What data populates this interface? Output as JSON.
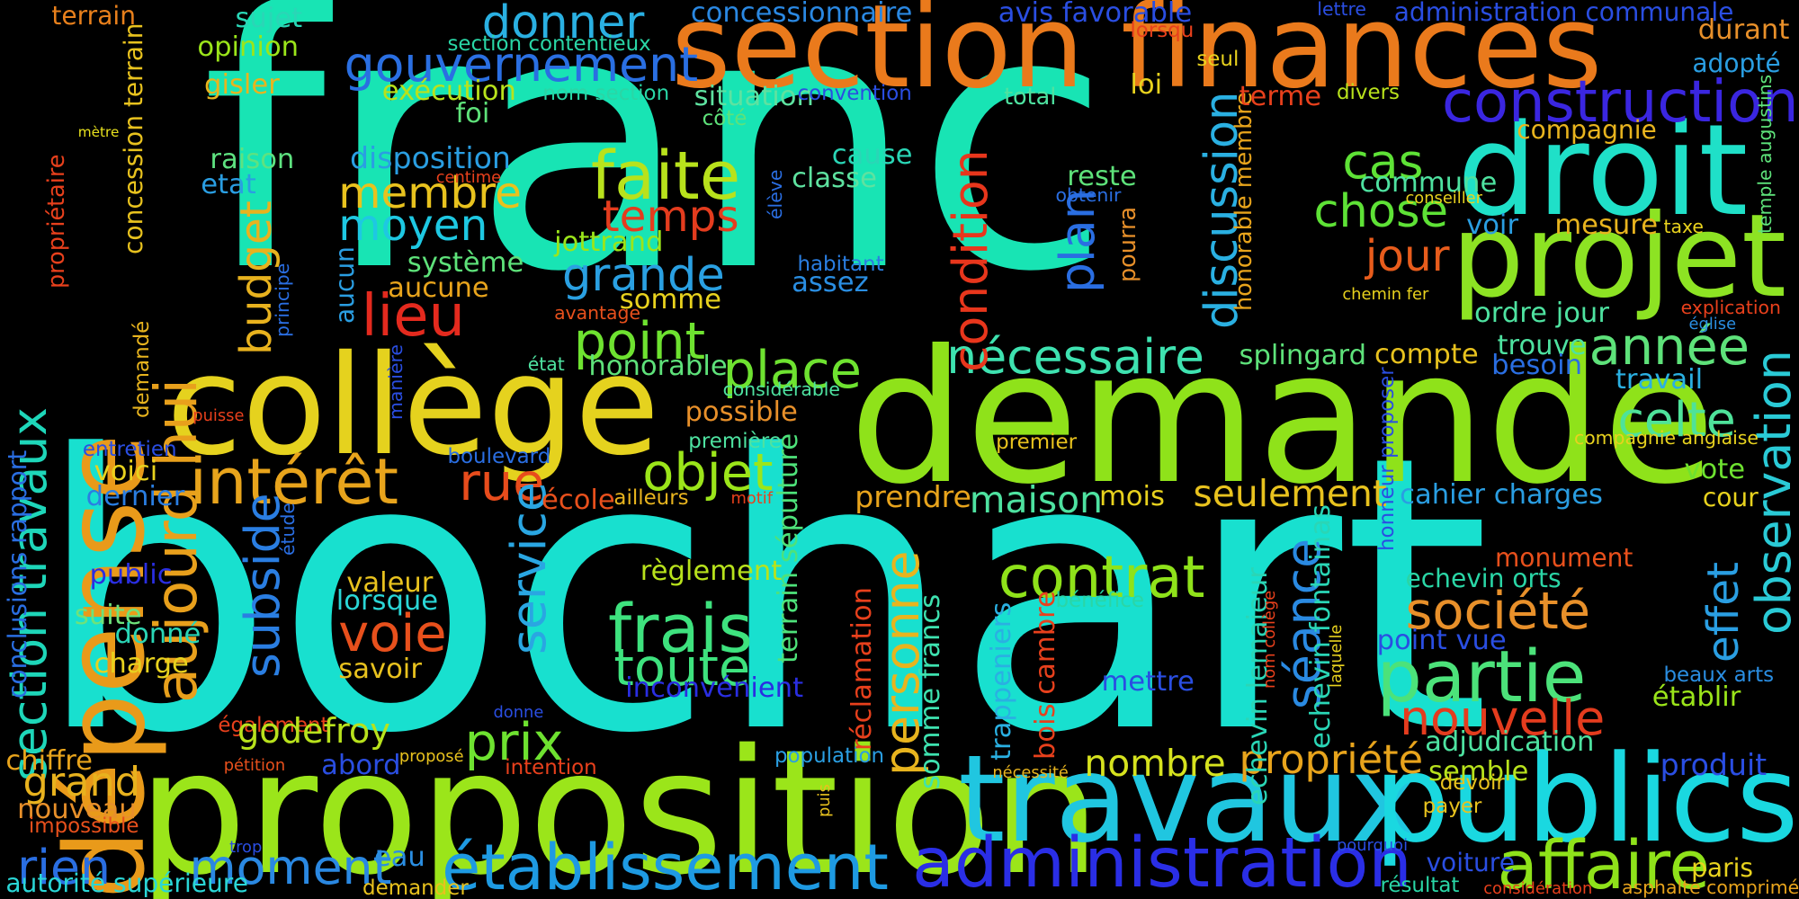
{
  "words": [
    {
      "text": "franc",
      "color": "#18e4b4"
    },
    {
      "text": "bochart",
      "color": "#18e0cf"
    },
    {
      "text": "demande",
      "color": "#8fe21a"
    },
    {
      "text": "proposition",
      "color": "#9be51a"
    },
    {
      "text": "collège",
      "color": "#e5d21e"
    },
    {
      "text": "section finances",
      "color": "#ea7a1c"
    },
    {
      "text": "droit",
      "color": "#1fe0c8"
    },
    {
      "text": "projet",
      "color": "#8de323"
    },
    {
      "text": "dépense",
      "color": "#e99a1a"
    },
    {
      "text": "travaux",
      "color": "#20c6e0"
    },
    {
      "text": "publics",
      "color": "#1ad8e0"
    },
    {
      "text": "administration",
      "color": "#2a2ee6"
    },
    {
      "text": "établissement",
      "color": "#1e9ae2"
    },
    {
      "text": "affaire",
      "color": "#8fe21a"
    },
    {
      "text": "aujourd hui",
      "color": "#e8a01c"
    },
    {
      "text": "section travaux",
      "color": "#1ed6b9"
    },
    {
      "text": "construction",
      "color": "#3a26e0"
    },
    {
      "text": "gouvernement",
      "color": "#2a6fe2"
    },
    {
      "text": "intérêt",
      "color": "#e8a41c"
    },
    {
      "text": "faite",
      "color": "#b8e21c"
    },
    {
      "text": "lieu",
      "color": "#e42a1e"
    },
    {
      "text": "partie",
      "color": "#4ce27a"
    },
    {
      "text": "frais",
      "color": "#3ee27e"
    },
    {
      "text": "toute",
      "color": "#3ee27e"
    },
    {
      "text": "contrat",
      "color": "#8fe21a"
    },
    {
      "text": "moment",
      "color": "#2a88e2"
    },
    {
      "text": "rien",
      "color": "#2a6ee2"
    },
    {
      "text": "voie",
      "color": "#e8501c"
    },
    {
      "text": "prix",
      "color": "#6ee230"
    },
    {
      "text": "place",
      "color": "#6ee230"
    },
    {
      "text": "point",
      "color": "#6ee230"
    },
    {
      "text": "grande",
      "color": "#2aa0e2"
    },
    {
      "text": "membre",
      "color": "#e8c21e"
    },
    {
      "text": "moyen",
      "color": "#1ec8e2"
    },
    {
      "text": "temps",
      "color": "#e43c1e"
    },
    {
      "text": "objet",
      "color": "#9be51a"
    },
    {
      "text": "rue",
      "color": "#e84c1c"
    },
    {
      "text": "année",
      "color": "#5ee27a"
    },
    {
      "text": "celte",
      "color": "#4ee29a"
    },
    {
      "text": "nécessaire",
      "color": "#3ee2b0"
    },
    {
      "text": "chose",
      "color": "#5ee236"
    },
    {
      "text": "cas",
      "color": "#5ee236"
    },
    {
      "text": "jour",
      "color": "#e85c1c"
    },
    {
      "text": "société",
      "color": "#e8902a"
    },
    {
      "text": "nouvelle",
      "color": "#e43c1e"
    },
    {
      "text": "propriété",
      "color": "#e8a41c"
    },
    {
      "text": "nombre",
      "color": "#d6e21e"
    },
    {
      "text": "seulement",
      "color": "#e8c21e"
    },
    {
      "text": "maison",
      "color": "#4ee2a0"
    },
    {
      "text": "personne",
      "color": "#e8b41e"
    },
    {
      "text": "service",
      "color": "#2aa6e2"
    },
    {
      "text": "subside",
      "color": "#2a7ee2"
    },
    {
      "text": "budget",
      "color": "#e8b21e"
    },
    {
      "text": "condition",
      "color": "#e8361c"
    },
    {
      "text": "plan",
      "color": "#2a6ee2"
    },
    {
      "text": "discussion",
      "color": "#2ab0e2"
    },
    {
      "text": "séance",
      "color": "#2a8ae2"
    },
    {
      "text": "observation",
      "color": "#2acad6"
    },
    {
      "text": "effet",
      "color": "#2a9ee2"
    },
    {
      "text": "donner",
      "color": "#2ab0e2"
    },
    {
      "text": "dernier",
      "color": "#2a7ee2"
    },
    {
      "text": "voici",
      "color": "#e8d21e"
    },
    {
      "text": "public",
      "color": "#2a2ee2"
    },
    {
      "text": "suite",
      "color": "#6ee27a"
    },
    {
      "text": "donné",
      "color": "#2ad6b6"
    },
    {
      "text": "charge",
      "color": "#e8d21e"
    },
    {
      "text": "grand",
      "color": "#e8b21e"
    },
    {
      "text": "chiffre",
      "color": "#e8a41c"
    },
    {
      "text": "nouveau",
      "color": "#e8902a"
    },
    {
      "text": "impossible",
      "color": "#e8501c"
    },
    {
      "text": "autorité supérieure",
      "color": "#2ad6d6"
    },
    {
      "text": "conclusions rapport",
      "color": "#2a6ee2"
    },
    {
      "text": "entretien",
      "color": "#2a4ee2"
    },
    {
      "text": "demandé",
      "color": "#e8b41e"
    },
    {
      "text": "propriétaire",
      "color": "#e8401c"
    },
    {
      "text": "concession terrain",
      "color": "#e8c21e"
    },
    {
      "text": "terrain",
      "color": "#e8801c"
    },
    {
      "text": "mètre",
      "color": "#e8e21e"
    },
    {
      "text": "sujet",
      "color": "#2ad6b6"
    },
    {
      "text": "opinion",
      "color": "#9be51a"
    },
    {
      "text": "gisler",
      "color": "#e8b41e"
    },
    {
      "text": "raison",
      "color": "#5ee280"
    },
    {
      "text": "etat",
      "color": "#2a9ee2"
    },
    {
      "text": "principe",
      "color": "#2a6ee2"
    },
    {
      "text": "puisse",
      "color": "#e8401c"
    },
    {
      "text": "aucun",
      "color": "#2a9ee2"
    },
    {
      "text": "aucune",
      "color": "#e8a41c"
    },
    {
      "text": "système",
      "color": "#5ee27a"
    },
    {
      "text": "disposition",
      "color": "#2a9ee2"
    },
    {
      "text": "exécution",
      "color": "#b8e21c"
    },
    {
      "text": "foi",
      "color": "#5ee27a"
    },
    {
      "text": "centime",
      "color": "#e8401c"
    },
    {
      "text": "section contentieux",
      "color": "#2ad6a6"
    },
    {
      "text": "nom section",
      "color": "#2ad6a6"
    },
    {
      "text": "concessionnaire",
      "color": "#2a88e2"
    },
    {
      "text": "situation",
      "color": "#5ee2a0"
    },
    {
      "text": "convention",
      "color": "#2a4ee2"
    },
    {
      "text": "côté",
      "color": "#5ee27a"
    },
    {
      "text": "cause",
      "color": "#2ad6b6"
    },
    {
      "text": "classe",
      "color": "#5ee2a0"
    },
    {
      "text": "élève",
      "color": "#2a6ee2"
    },
    {
      "text": "jottrand",
      "color": "#9be51a"
    },
    {
      "text": "habitant",
      "color": "#2a7ee2"
    },
    {
      "text": "assez",
      "color": "#2a8ee2"
    },
    {
      "text": "somme",
      "color": "#e8d21e"
    },
    {
      "text": "avantage",
      "color": "#e8501c"
    },
    {
      "text": "honorable",
      "color": "#5ee27a"
    },
    {
      "text": "état",
      "color": "#4ee2a0"
    },
    {
      "text": "manière",
      "color": "#2a4ee2"
    },
    {
      "text": "possible",
      "color": "#e8902a"
    },
    {
      "text": "considérable",
      "color": "#4ee2a0"
    },
    {
      "text": "première",
      "color": "#4ee2a0"
    },
    {
      "text": "boulevard",
      "color": "#2a6ee2"
    },
    {
      "text": "étude",
      "color": "#2a6ee2"
    },
    {
      "text": "école",
      "color": "#e8501c"
    },
    {
      "text": "ailleurs",
      "color": "#e8b41e"
    },
    {
      "text": "motif",
      "color": "#e8401c"
    },
    {
      "text": "règlement",
      "color": "#b8e21c"
    },
    {
      "text": "valeur",
      "color": "#e8c21e"
    },
    {
      "text": "lorsque",
      "color": "#2ad6d6"
    },
    {
      "text": "savoir",
      "color": "#e8c21e"
    },
    {
      "text": "inconvénient",
      "color": "#2a2ee2"
    },
    {
      "text": "terrain sépulture",
      "color": "#4ee27a"
    },
    {
      "text": "également",
      "color": "#e8401c"
    },
    {
      "text": "godefroy",
      "color": "#b8e21c"
    },
    {
      "text": "pétition",
      "color": "#e8501c"
    },
    {
      "text": "abord",
      "color": "#2a4ee2"
    },
    {
      "text": "proposé",
      "color": "#e8c21e"
    },
    {
      "text": "intention",
      "color": "#e8401c"
    },
    {
      "text": "population",
      "color": "#2a9ee2"
    },
    {
      "text": "eau",
      "color": "#2a8ee2"
    },
    {
      "text": "demander",
      "color": "#e8c21e"
    },
    {
      "text": "donne",
      "color": "#2a4ee2"
    },
    {
      "text": "trop",
      "color": "#2a4ee2"
    },
    {
      "text": "puis",
      "color": "#e8c21e"
    },
    {
      "text": "nécessité",
      "color": "#e8b41e"
    },
    {
      "text": "prendre",
      "color": "#e8a41c"
    },
    {
      "text": "mois",
      "color": "#e8d21e"
    },
    {
      "text": "réclamation",
      "color": "#e8401c"
    },
    {
      "text": "somme francs",
      "color": "#3ee2b0"
    },
    {
      "text": "trappeniers",
      "color": "#2ab0e2"
    },
    {
      "text": "bois cambre",
      "color": "#e8401c"
    },
    {
      "text": "bénéfice",
      "color": "#2ad6a6"
    },
    {
      "text": "mettre",
      "color": "#2a4ee2"
    },
    {
      "text": "premier",
      "color": "#e8c21e"
    },
    {
      "text": "echevin lemaieur",
      "color": "#2ad6b6"
    },
    {
      "text": "echevin fontainas",
      "color": "#2ad6b6"
    },
    {
      "text": "nom collège",
      "color": "#e8401c"
    },
    {
      "text": "laquelle",
      "color": "#e8d21e"
    },
    {
      "text": "honorable membre",
      "color": "#e8a41c"
    },
    {
      "text": "avis favorable",
      "color": "#2a4ee2"
    },
    {
      "text": "lorsqu",
      "color": "#e8401c"
    },
    {
      "text": "seul",
      "color": "#e8d21e"
    },
    {
      "text": "lettre",
      "color": "#2a4ee2"
    },
    {
      "text": "administration communale",
      "color": "#2a4ee2"
    },
    {
      "text": "total",
      "color": "#4ee2a0"
    },
    {
      "text": "loi",
      "color": "#e8d21e"
    },
    {
      "text": "terme",
      "color": "#e8401c"
    },
    {
      "text": "divers",
      "color": "#b8e21c"
    },
    {
      "text": "reste",
      "color": "#5ee27a"
    },
    {
      "text": "obtenir",
      "color": "#2a6ee2"
    },
    {
      "text": "pourra",
      "color": "#e8902a"
    },
    {
      "text": "commune",
      "color": "#4ee2a0"
    },
    {
      "text": "conseiller",
      "color": "#e8d21e"
    },
    {
      "text": "chemin fer",
      "color": "#e8d21e"
    },
    {
      "text": "compagnie",
      "color": "#e8b41e"
    },
    {
      "text": "mesure",
      "color": "#e8b41e"
    },
    {
      "text": "taxe",
      "color": "#e8d21e"
    },
    {
      "text": "voir",
      "color": "#2a9ee2"
    },
    {
      "text": "ordre jour",
      "color": "#4ee2a0"
    },
    {
      "text": "trouve",
      "color": "#4ee2a0"
    },
    {
      "text": "besoin",
      "color": "#2a6ee2"
    },
    {
      "text": "travail",
      "color": "#2ab0e2"
    },
    {
      "text": "splingard",
      "color": "#5ee27a"
    },
    {
      "text": "compte",
      "color": "#e8c21e"
    },
    {
      "text": "église",
      "color": "#2a8ee2"
    },
    {
      "text": "explication",
      "color": "#e8401c"
    },
    {
      "text": "durant",
      "color": "#e8902a"
    },
    {
      "text": "adopté",
      "color": "#2a9ee2"
    },
    {
      "text": "temple augustins",
      "color": "#5ee27a"
    },
    {
      "text": "compagnie anglaise",
      "color": "#e8d21e"
    },
    {
      "text": "vote",
      "color": "#6ee230"
    },
    {
      "text": "cour",
      "color": "#e8d21e"
    },
    {
      "text": "cahier charges",
      "color": "#2a9ee2"
    },
    {
      "text": "monument",
      "color": "#e8501c"
    },
    {
      "text": "echevin orts",
      "color": "#2ad6a6"
    },
    {
      "text": "point vue",
      "color": "#2a4ee2"
    },
    {
      "text": "adjudication",
      "color": "#4ee2a0"
    },
    {
      "text": "semble",
      "color": "#b8e21c"
    },
    {
      "text": "devoir",
      "color": "#e8c21e"
    },
    {
      "text": "payer",
      "color": "#e8c21e"
    },
    {
      "text": "pourquoi",
      "color": "#2a4ee2"
    },
    {
      "text": "résultat",
      "color": "#2ad6a6"
    },
    {
      "text": "considération",
      "color": "#e8401c"
    },
    {
      "text": "asphalte comprimé",
      "color": "#e8a41c"
    },
    {
      "text": "voiture",
      "color": "#2a4ee2"
    },
    {
      "text": "paris",
      "color": "#e8d21e"
    },
    {
      "text": "produit",
      "color": "#2a4ee2"
    },
    {
      "text": "beaux arts",
      "color": "#2a8ee2"
    },
    {
      "text": "établir",
      "color": "#9be51a"
    },
    {
      "text": "honneur proposer",
      "color": "#2a4ee2"
    }
  ]
}
